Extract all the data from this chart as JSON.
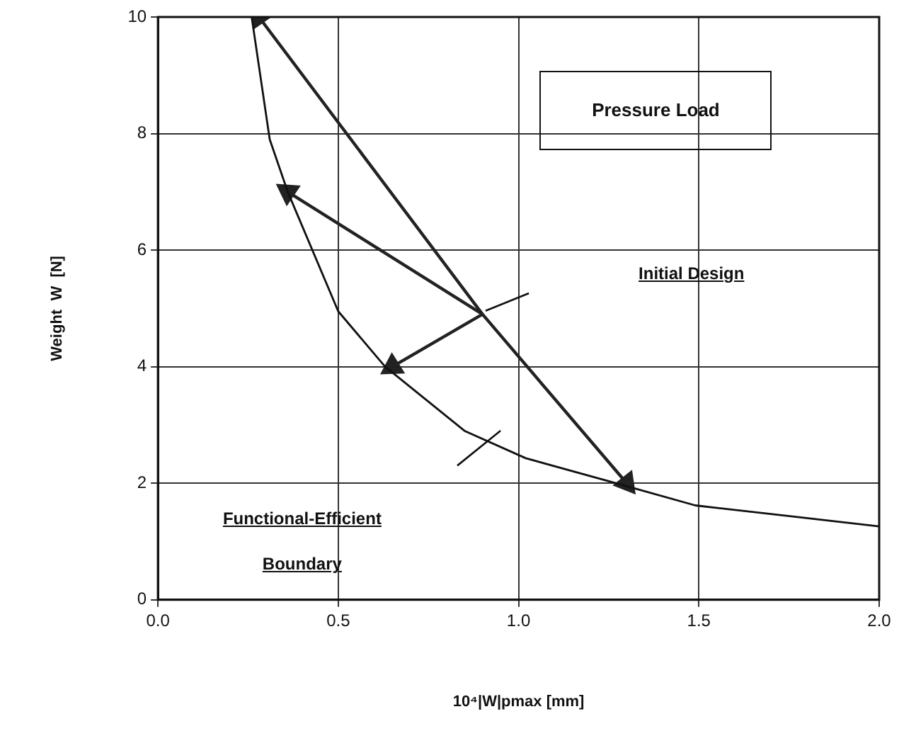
{
  "chart_data": {
    "type": "line",
    "xlabel": "10⁴|W|pmax [mm]",
    "ylabel": "Weight  W  [N]",
    "xlim": [
      0,
      2
    ],
    "xticks": [
      {
        "value": 0,
        "label": "0.0"
      },
      {
        "value": 0.5,
        "label": "0.5"
      },
      {
        "value": 1,
        "label": "1.0"
      },
      {
        "value": 1.5,
        "label": "1.5"
      },
      {
        "value": 2,
        "label": "2.0"
      }
    ],
    "ylim": [
      0,
      10
    ],
    "yticks": [
      0,
      2,
      4,
      6,
      8,
      10
    ],
    "grid": true,
    "legend": false,
    "series": [
      {
        "marker": "none",
        "color": "#111111",
        "x": [
          0.26,
          0.31,
          0.36,
          0.5,
          0.63,
          0.85,
          1.02,
          1.3,
          1.49,
          1.76,
          2.0
        ],
        "values": [
          10,
          7.9,
          7.0,
          4.95,
          4.0,
          2.9,
          2.43,
          1.95,
          1.62,
          1.43,
          1.26
        ]
      },
      {
        "marker": "triangle",
        "color": "#222222",
        "x": [
          0.28,
          0.9,
          1.3
        ],
        "values": [
          10,
          4.9,
          2
        ]
      },
      {
        "marker": "triangle",
        "color": "#222222",
        "x": [
          0.9,
          0.36
        ],
        "values": [
          4.9,
          7
        ]
      },
      {
        "marker": "triangle",
        "color": "#222222",
        "x": [
          0.9,
          0.65
        ],
        "values": [
          4.9,
          4
        ]
      }
    ],
    "annotations": [
      "Pressure Load",
      "Initial Design",
      "Functional-Efficient Boundary"
    ]
  }
}
